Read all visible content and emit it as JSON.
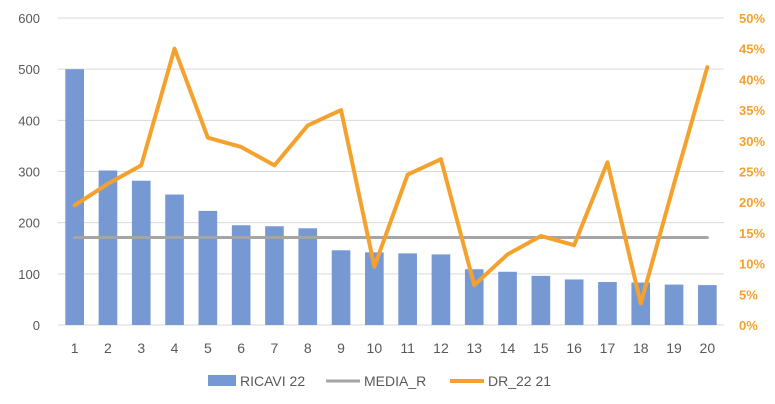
{
  "chart_data": {
    "type": "bar",
    "categories": [
      "1",
      "2",
      "3",
      "4",
      "5",
      "6",
      "7",
      "8",
      "9",
      "10",
      "11",
      "12",
      "13",
      "14",
      "15",
      "16",
      "17",
      "18",
      "19",
      "20"
    ],
    "series": [
      {
        "name": "RICAVI 22",
        "type": "bar",
        "axis": "left",
        "color": "#7699d4",
        "values": [
          500,
          302,
          282,
          255,
          223,
          195,
          193,
          189,
          146,
          142,
          140,
          138,
          109,
          104,
          96,
          89,
          84,
          83,
          79,
          78
        ]
      },
      {
        "name": "MEDIA_R",
        "type": "line",
        "axis": "left",
        "color": "#a5a5a5",
        "values": [
          171,
          171,
          171,
          171,
          171,
          171,
          171,
          171,
          171,
          171,
          171,
          171,
          171,
          171,
          171,
          171,
          171,
          171,
          171,
          171
        ]
      },
      {
        "name": "DR_22 21",
        "type": "line",
        "axis": "right",
        "color": "#f4a22d",
        "values": [
          19.5,
          23.0,
          26.0,
          45.0,
          30.5,
          29.0,
          26.0,
          32.5,
          35.0,
          9.5,
          24.5,
          27.0,
          6.5,
          11.5,
          14.5,
          13.0,
          26.5,
          3.5,
          23.0,
          42.0
        ]
      }
    ],
    "y_left": {
      "lim": [
        0,
        600
      ],
      "ticks": [
        "0",
        "100",
        "200",
        "300",
        "400",
        "500",
        "600"
      ]
    },
    "y_right": {
      "lim": [
        0,
        50
      ],
      "ticks": [
        "0%",
        "5%",
        "10%",
        "15%",
        "20%",
        "25%",
        "30%",
        "35%",
        "40%",
        "45%",
        "50%"
      ],
      "color": "#f4a22d"
    },
    "title": "",
    "xlabel": "",
    "ylabel": "",
    "grid": true,
    "legend_position": "bottom",
    "legend": [
      "RICAVI 22",
      "MEDIA_R",
      "DR_22 21"
    ]
  }
}
